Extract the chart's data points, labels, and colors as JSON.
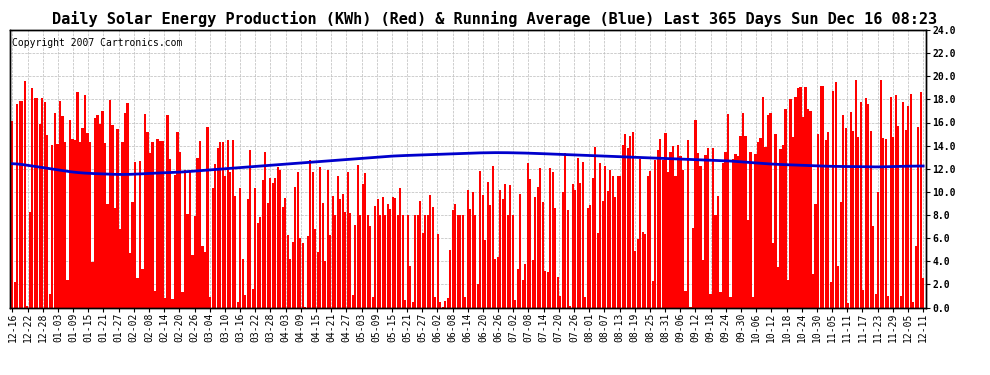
{
  "title": "Daily Solar Energy Production (KWh) (Red) & Running Average (Blue) Last 365 Days Sun Dec 16 08:23",
  "copyright": "Copyright 2007 Cartronics.com",
  "bar_color": "#ff0000",
  "avg_line_color": "#0000cc",
  "bg_color": "#ffffff",
  "plot_bg_color": "#ffffff",
  "grid_color": "#bbbbbb",
  "ylim": [
    0.0,
    24.0
  ],
  "yticks": [
    0.0,
    2.0,
    4.0,
    6.0,
    8.0,
    10.0,
    12.0,
    14.0,
    16.0,
    18.0,
    20.0,
    22.0,
    24.0
  ],
  "title_fontsize": 11,
  "copyright_fontsize": 7,
  "tick_fontsize": 7,
  "x_labels": [
    "12-16",
    "12-22",
    "12-28",
    "01-03",
    "01-09",
    "01-15",
    "01-21",
    "01-27",
    "02-02",
    "02-08",
    "02-14",
    "02-20",
    "02-26",
    "03-04",
    "03-10",
    "03-16",
    "03-22",
    "03-28",
    "04-03",
    "04-09",
    "04-15",
    "04-21",
    "04-27",
    "05-03",
    "05-09",
    "05-15",
    "05-21",
    "05-27",
    "06-02",
    "06-08",
    "06-14",
    "06-20",
    "06-26",
    "07-02",
    "07-08",
    "07-14",
    "07-20",
    "07-26",
    "08-01",
    "08-07",
    "08-13",
    "08-19",
    "08-25",
    "08-31",
    "09-06",
    "09-12",
    "09-18",
    "09-24",
    "09-30",
    "10-06",
    "10-12",
    "10-18",
    "10-24",
    "10-30",
    "11-05",
    "11-11",
    "11-17",
    "11-23",
    "11-29",
    "12-05",
    "12-11"
  ],
  "avg_line": [
    12.5,
    12.3,
    12.1,
    11.9,
    11.7,
    11.6,
    11.55,
    11.5,
    11.52,
    11.6,
    11.65,
    11.7,
    11.8,
    11.9,
    12.0,
    12.1,
    12.2,
    12.3,
    12.4,
    12.5,
    12.6,
    12.7,
    12.8,
    12.9,
    13.0,
    13.1,
    13.15,
    13.2,
    13.25,
    13.3,
    13.35,
    13.38,
    13.4,
    13.38,
    13.35,
    13.3,
    13.25,
    13.2,
    13.15,
    13.1,
    13.05,
    13.0,
    12.95,
    12.9,
    12.85,
    12.8,
    12.75,
    12.7,
    12.6,
    12.5,
    12.4,
    12.35,
    12.3,
    12.25,
    12.2,
    12.2,
    12.18,
    12.15,
    12.2,
    12.22,
    12.25
  ]
}
